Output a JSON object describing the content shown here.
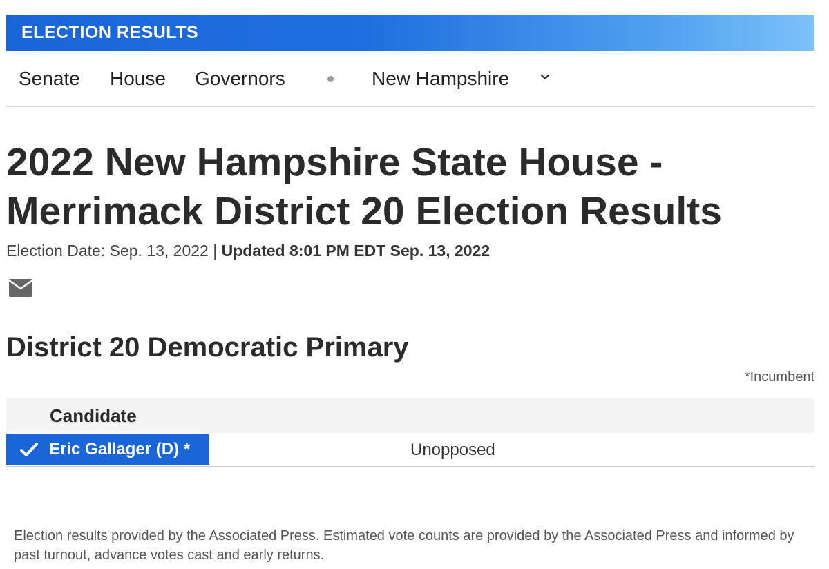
{
  "banner": {
    "title": "ELECTION RESULTS"
  },
  "nav": {
    "items": [
      {
        "label": "Senate"
      },
      {
        "label": "House"
      },
      {
        "label": "Governors"
      }
    ],
    "state_selector": {
      "value": "New Hampshire",
      "icon": "chevron-down-icon"
    }
  },
  "page": {
    "title_line1": "2022 New Hampshire State House -",
    "title_line2": "Merrimack District 20 Election Results",
    "election_date": "Election Date: Sep. 13, 2022 |",
    "updated": "Updated 8:01 PM EDT Sep. 13, 2022",
    "share_icon": "mail-icon"
  },
  "race": {
    "title": "District 20 Democratic Primary",
    "incumbent_note": "*Incumbent",
    "table": {
      "header_candidate": "Candidate",
      "rows": [
        {
          "candidate": "Eric Gallager (D) *",
          "status": "Unopposed",
          "winner": true,
          "icon": "checkmark-icon"
        }
      ]
    }
  },
  "footnote": "Election results provided by the Associated Press. Estimated vote counts are provided by the Associated Press and informed by past turnout, advance votes cast and early returns.",
  "colors": {
    "banner_start": "#1a66d9",
    "banner_end": "#7cc1f8",
    "winner_fill": "#1a66d9",
    "text_dark": "#2b2b2b"
  }
}
